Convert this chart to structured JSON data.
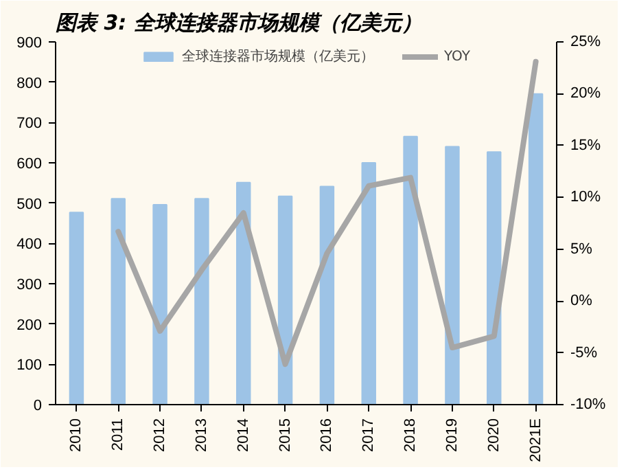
{
  "chart_data": {
    "type": "bar",
    "title": "图表 3:  全球连接器市场规模（亿美元）",
    "categories": [
      "2010",
      "2011",
      "2012",
      "2013",
      "2014",
      "2015",
      "2016",
      "2017",
      "2018",
      "2019",
      "2020",
      "2021E"
    ],
    "series": [
      {
        "name": "全球连接器市场规模（亿美元）",
        "color": "#9dc3e6",
        "values": [
          477,
          511,
          496,
          511,
          551,
          517,
          541,
          600,
          665,
          640,
          627,
          771
        ]
      },
      {
        "name": "YOY",
        "type": "line",
        "axis": "y2",
        "color": "#a6a6a6",
        "values": [
          null,
          6.7,
          -2.9,
          3.0,
          8.5,
          -6.1,
          4.6,
          11.1,
          11.9,
          -4.5,
          -3.4,
          23.1
        ]
      }
    ],
    "ylim": [
      0,
      900
    ],
    "yticks": [
      0,
      100,
      200,
      300,
      400,
      500,
      600,
      700,
      800,
      900
    ],
    "y2lim": [
      -10,
      25
    ],
    "y2ticks": [
      {
        "value": -10,
        "label": "-10%"
      },
      {
        "value": -5,
        "label": "-5%"
      },
      {
        "value": 0,
        "label": "0%"
      },
      {
        "value": 5,
        "label": "5%"
      },
      {
        "value": 10,
        "label": "10%"
      },
      {
        "value": 15,
        "label": "15%"
      },
      {
        "value": 20,
        "label": "20%"
      },
      {
        "value": 25,
        "label": "25%"
      }
    ],
    "legend": "top",
    "grid": false
  }
}
